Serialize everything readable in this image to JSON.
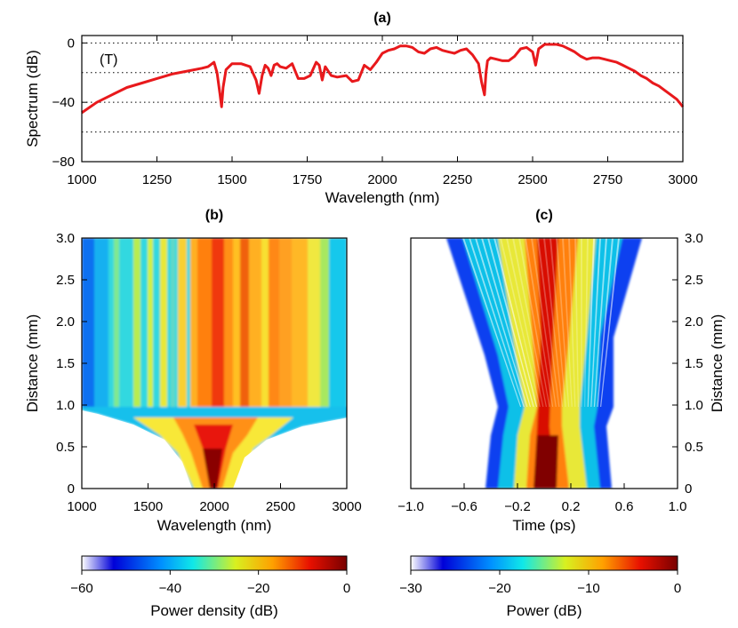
{
  "chart_data": [
    {
      "type": "line",
      "title": "(a)",
      "annotation": "(T)",
      "xlabel": "Wavelength (nm)",
      "ylabel": "Spectrum (dB)",
      "xlim": [
        1000,
        3000
      ],
      "ylim": [
        -80,
        5
      ],
      "xticks": [
        1000,
        1250,
        1500,
        1750,
        2000,
        2250,
        2500,
        2750,
        3000
      ],
      "yticks": [
        0,
        -40,
        -80
      ],
      "ygrid": [
        0,
        -20,
        -40,
        -60
      ],
      "grid": "horizontal dotted",
      "series": [
        {
          "color": "#e8191c",
          "x": [
            1000,
            1050,
            1100,
            1150,
            1200,
            1250,
            1300,
            1350,
            1400,
            1420,
            1440,
            1450,
            1460,
            1465,
            1470,
            1480,
            1500,
            1530,
            1560,
            1580,
            1590,
            1600,
            1610,
            1620,
            1630,
            1640,
            1650,
            1660,
            1680,
            1700,
            1720,
            1740,
            1760,
            1780,
            1790,
            1800,
            1810,
            1830,
            1850,
            1880,
            1900,
            1920,
            1940,
            1960,
            1980,
            2000,
            2020,
            2040,
            2060,
            2080,
            2100,
            2120,
            2140,
            2160,
            2180,
            2200,
            2220,
            2240,
            2260,
            2280,
            2300,
            2320,
            2330,
            2340,
            2345,
            2350,
            2360,
            2380,
            2400,
            2420,
            2440,
            2460,
            2480,
            2500,
            2510,
            2520,
            2540,
            2560,
            2580,
            2600,
            2620,
            2640,
            2660,
            2680,
            2700,
            2720,
            2740,
            2760,
            2780,
            2800,
            2820,
            2840,
            2860,
            2880,
            2900,
            2920,
            2940,
            2960,
            2980,
            3000
          ],
          "y": [
            -47,
            -40,
            -35,
            -30,
            -27,
            -24,
            -21,
            -19,
            -17,
            -16,
            -13,
            -20,
            -35,
            -43,
            -30,
            -18,
            -14,
            -14,
            -16,
            -25,
            -34,
            -22,
            -15,
            -17,
            -22,
            -15,
            -14,
            -16,
            -17,
            -14,
            -24,
            -24,
            -22,
            -13,
            -15,
            -25,
            -16,
            -22,
            -23,
            -22,
            -26,
            -25,
            -15,
            -18,
            -13,
            -7,
            -5,
            -4,
            -2,
            -2,
            -3,
            -6,
            -7,
            -4,
            -3,
            -5,
            -6,
            -7,
            -5,
            -4,
            -8,
            -14,
            -26,
            -35,
            -20,
            -12,
            -10,
            -11,
            -12,
            -12,
            -9,
            -4,
            -3,
            -6,
            -15,
            -4,
            -1,
            -1,
            -1,
            -2,
            -4,
            -6,
            -9,
            -11,
            -10,
            -10,
            -11,
            -12,
            -13,
            -15,
            -17,
            -19,
            -22,
            -24,
            -27,
            -29,
            -32,
            -35,
            -38,
            -43
          ]
        }
      ]
    },
    {
      "type": "heatmap",
      "title": "(b)",
      "xlabel": "Wavelength (nm)",
      "ylabel": "Distance (mm)",
      "xlim": [
        1000,
        3000
      ],
      "ylim": [
        0,
        3.0
      ],
      "xticks": [
        1000,
        1500,
        2000,
        2500,
        3000
      ],
      "yticks": [
        "0",
        "0.5",
        "1.0",
        "1.5",
        "2.0",
        "2.5",
        "3.0"
      ],
      "colorbar": {
        "label": "Power density (dB)",
        "range": [
          -60,
          0
        ],
        "ticks": [
          -60,
          -40,
          -20,
          0
        ]
      }
    },
    {
      "type": "heatmap",
      "title": "(c)",
      "xlabel": "Time (ps)",
      "ylabel": "Distance (mm)",
      "xlim": [
        -1.0,
        1.0
      ],
      "ylim": [
        0,
        3.0
      ],
      "xticks": [
        "−1.0",
        "−0.6",
        "−0.2",
        "0.2",
        "0.6",
        "1.0"
      ],
      "yticks": [
        "0",
        "0.5",
        "1.0",
        "1.5",
        "2.0",
        "2.5",
        "3.0"
      ],
      "colorbar": {
        "label": "Power (dB)",
        "range": [
          -30,
          0
        ],
        "ticks": [
          -30,
          -20,
          -10,
          0
        ]
      }
    }
  ]
}
